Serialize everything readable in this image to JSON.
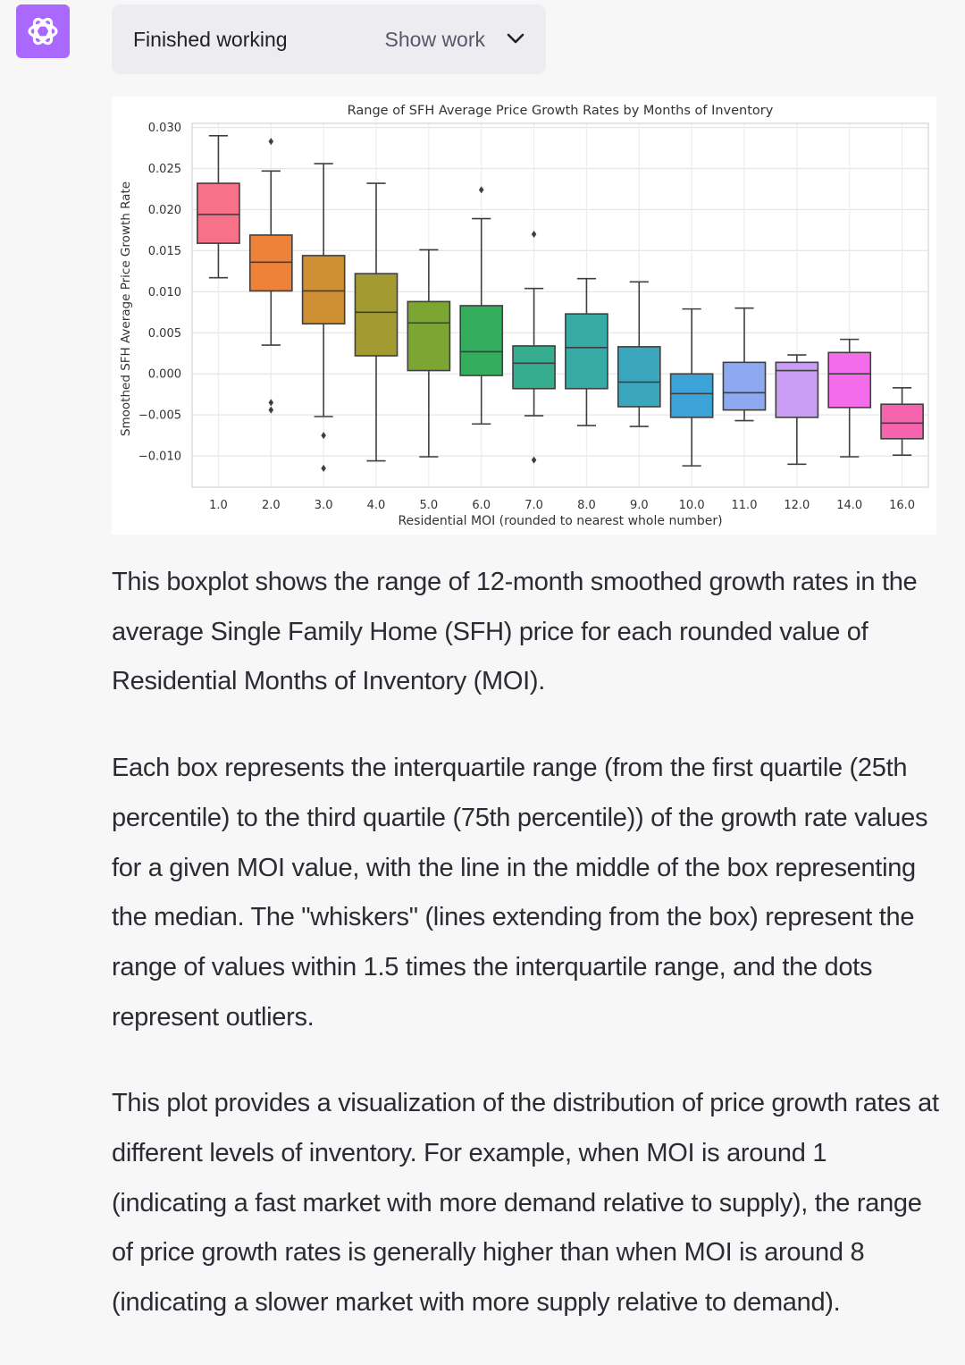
{
  "header": {
    "status_label": "Finished working",
    "show_work_label": "Show work"
  },
  "icons": {
    "avatar": "openai-logo-icon",
    "toggle": "chevron-down-icon"
  },
  "colors": {
    "avatar_bg": "#ab68ff",
    "page_bg": "#f7f7f8",
    "bar_bg": "#ececf1"
  },
  "chart_data": {
    "type": "boxplot",
    "title": "Range of SFH Average Price Growth Rates by Months of Inventory",
    "xlabel": "Residential MOI (rounded to nearest whole number)",
    "ylabel": "Smoothed SFH Average Price Growth Rate",
    "ylim": [
      -0.0138,
      0.0305
    ],
    "yticks": [
      0.03,
      0.025,
      0.02,
      0.015,
      0.01,
      0.005,
      0.0,
      -0.005,
      -0.01
    ],
    "ytick_labels": [
      "0.030",
      "0.025",
      "0.020",
      "0.015",
      "0.010",
      "0.005",
      "0.000",
      "−0.005",
      "−0.010"
    ],
    "grid": true,
    "categories": [
      "1.0",
      "2.0",
      "3.0",
      "4.0",
      "5.0",
      "6.0",
      "7.0",
      "8.0",
      "9.0",
      "10.0",
      "11.0",
      "12.0",
      "14.0",
      "16.0"
    ],
    "boxes": [
      {
        "category": "1.0",
        "whisker_low": 0.0117,
        "q1": 0.0159,
        "median": 0.0194,
        "q3": 0.0232,
        "whisker_high": 0.029,
        "outliers": [],
        "color": "#f77189"
      },
      {
        "category": "2.0",
        "whisker_low": 0.0035,
        "q1": 0.0101,
        "median": 0.0136,
        "q3": 0.0169,
        "whisker_high": 0.0247,
        "outliers": [
          0.0283,
          -0.0035,
          -0.0044
        ],
        "color": "#ee8239"
      },
      {
        "category": "3.0",
        "whisker_low": -0.0052,
        "q1": 0.0061,
        "median": 0.0101,
        "q3": 0.0144,
        "whisker_high": 0.0256,
        "outliers": [
          -0.0075,
          -0.0115
        ],
        "color": "#ce9032"
      },
      {
        "category": "4.0",
        "whisker_low": -0.0106,
        "q1": 0.0022,
        "median": 0.0075,
        "q3": 0.0122,
        "whisker_high": 0.0232,
        "outliers": [],
        "color": "#a39a31"
      },
      {
        "category": "5.0",
        "whisker_low": -0.0101,
        "q1": 0.0004,
        "median": 0.0062,
        "q3": 0.0088,
        "whisker_high": 0.0151,
        "outliers": [],
        "color": "#7ba632"
      },
      {
        "category": "6.0",
        "whisker_low": -0.0061,
        "q1": -0.0002,
        "median": 0.0027,
        "q3": 0.0083,
        "whisker_high": 0.0189,
        "outliers": [
          0.0224
        ],
        "color": "#34ae5d"
      },
      {
        "category": "7.0",
        "whisker_low": -0.0051,
        "q1": -0.0018,
        "median": 0.0013,
        "q3": 0.0034,
        "whisker_high": 0.0104,
        "outliers": [
          0.017,
          -0.0105
        ],
        "color": "#36ad8e"
      },
      {
        "category": "8.0",
        "whisker_low": -0.0063,
        "q1": -0.0018,
        "median": 0.0032,
        "q3": 0.0073,
        "whisker_high": 0.0116,
        "outliers": [],
        "color": "#38aaa5"
      },
      {
        "category": "9.0",
        "whisker_low": -0.0064,
        "q1": -0.004,
        "median": -0.001,
        "q3": 0.0033,
        "whisker_high": 0.0112,
        "outliers": [],
        "color": "#3aa7be"
      },
      {
        "category": "10.0",
        "whisker_low": -0.0112,
        "q1": -0.0053,
        "median": -0.0024,
        "q3": 0.0,
        "whisker_high": 0.0079,
        "outliers": [],
        "color": "#3ba3d8"
      },
      {
        "category": "11.0",
        "whisker_low": -0.0057,
        "q1": -0.0044,
        "median": -0.0023,
        "q3": 0.0014,
        "whisker_high": 0.008,
        "outliers": [],
        "color": "#8ea9ef"
      },
      {
        "category": "12.0",
        "whisker_low": -0.011,
        "q1": -0.0053,
        "median": 0.0004,
        "q3": 0.0014,
        "whisker_high": 0.0023,
        "outliers": [],
        "color": "#c99ef4"
      },
      {
        "category": "14.0",
        "whisker_low": -0.0101,
        "q1": -0.0041,
        "median": 0.0,
        "q3": 0.0026,
        "whisker_high": 0.0042,
        "outliers": [],
        "color": "#f36ce9"
      },
      {
        "category": "16.0",
        "whisker_low": -0.0099,
        "q1": -0.0079,
        "median": -0.006,
        "q3": -0.0037,
        "whisker_high": -0.0017,
        "outliers": [],
        "color": "#f564ac"
      }
    ]
  },
  "message": {
    "paragraphs": [
      "This boxplot shows the range of 12-month smoothed growth rates in the average Single Family Home (SFH) price for each rounded value of Residential Months of Inventory (MOI).",
      "Each box represents the interquartile range (from the first quartile (25th percentile) to the third quartile (75th percentile)) of the growth rate values for a given MOI value, with the line in the middle of the box representing the median. The \"whiskers\" (lines extending from the box) represent the range of values within 1.5 times the interquartile range, and the dots represent outliers.",
      "This plot provides a visualization of the distribution of price growth rates at different levels of inventory. For example, when MOI is around 1 (indicating a fast market with more demand relative to supply), the range of price growth rates is generally higher than when MOI is around 8 (indicating a slower market with more supply relative to demand)."
    ]
  }
}
